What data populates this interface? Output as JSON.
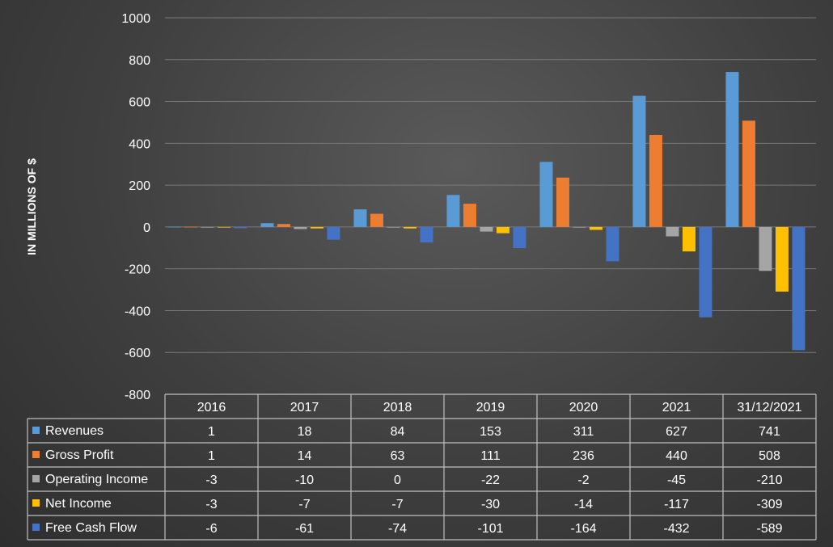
{
  "chart_data": {
    "type": "bar",
    "ylabel": "IN MILLIONS OF $",
    "xlabel": "",
    "title": "",
    "ylim": [
      -800,
      1000
    ],
    "yticks": [
      -800,
      -600,
      -400,
      -200,
      0,
      200,
      400,
      600,
      800,
      1000
    ],
    "grid": true,
    "legend": "data table",
    "categories": [
      "2016",
      "2017",
      "2018",
      "2019",
      "2020",
      "2021",
      "31/12/2021"
    ],
    "series": [
      {
        "name": "Revenues",
        "color": "#5b9bd5",
        "values": [
          1,
          18,
          84,
          153,
          311,
          627,
          741
        ]
      },
      {
        "name": "Gross Profit",
        "color": "#ed7d31",
        "values": [
          1,
          14,
          63,
          111,
          236,
          440,
          508
        ]
      },
      {
        "name": "Operating Income",
        "color": "#a5a5a5",
        "values": [
          -3,
          -10,
          0,
          -22,
          -2,
          -45,
          -210
        ]
      },
      {
        "name": "Net Income",
        "color": "#ffc000",
        "values": [
          -3,
          -7,
          -7,
          -30,
          -14,
          -117,
          -309
        ]
      },
      {
        "name": "Free Cash Flow",
        "color": "#4472c4",
        "values": [
          -6,
          -61,
          -74,
          -101,
          -164,
          -432,
          -589
        ]
      }
    ]
  }
}
